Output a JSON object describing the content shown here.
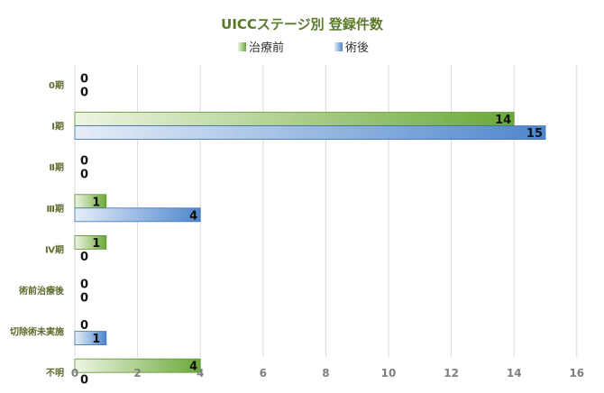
{
  "colors": {
    "pre": "#6aa938",
    "post": "#4f86cc",
    "title": "#5b7a2a"
  },
  "chart_data": {
    "type": "bar",
    "orientation": "horizontal",
    "title": "UICCステージ別 登録件数",
    "categories": [
      "0期",
      "Ⅰ期",
      "Ⅱ期",
      "Ⅲ期",
      "Ⅳ期",
      "術前治療後",
      "切除術未実施",
      "不明"
    ],
    "series": [
      {
        "name": "治療前",
        "values": [
          0,
          14,
          0,
          1,
          1,
          0,
          0,
          4
        ]
      },
      {
        "name": "術後",
        "values": [
          0,
          15,
          0,
          4,
          0,
          0,
          1,
          0
        ]
      }
    ],
    "xlim": [
      0,
      16
    ],
    "xticks": [
      0,
      2,
      4,
      6,
      8,
      10,
      12,
      14,
      16
    ],
    "grid": true,
    "legend": "top-center",
    "data_labels": true
  }
}
